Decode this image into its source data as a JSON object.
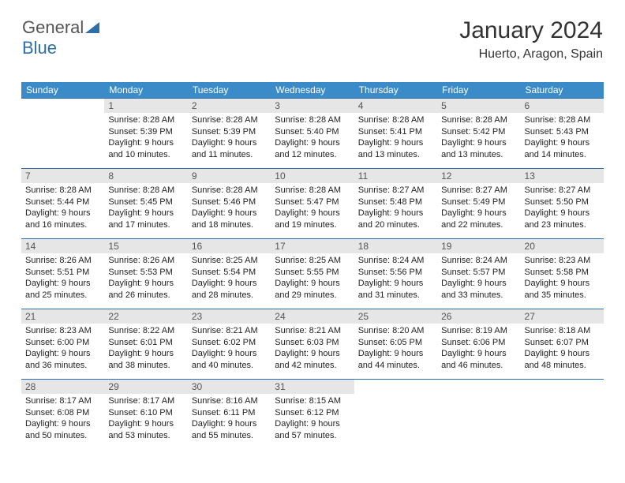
{
  "logo": {
    "part1": "General",
    "part2": "Blue"
  },
  "title": "January 2024",
  "location": "Huerto, Aragon, Spain",
  "colors": {
    "header_bg": "#3b8bc9",
    "daynum_bg": "#e6e6e6",
    "rule": "#2f6fa8",
    "logo_blue": "#2f6fa8"
  },
  "weekdays": [
    "Sunday",
    "Monday",
    "Tuesday",
    "Wednesday",
    "Thursday",
    "Friday",
    "Saturday"
  ],
  "weeks": [
    [
      {
        "day": "",
        "sunrise": "",
        "sunset": "",
        "daylight": ""
      },
      {
        "day": "1",
        "sunrise": "Sunrise: 8:28 AM",
        "sunset": "Sunset: 5:39 PM",
        "daylight": "Daylight: 9 hours and 10 minutes."
      },
      {
        "day": "2",
        "sunrise": "Sunrise: 8:28 AM",
        "sunset": "Sunset: 5:39 PM",
        "daylight": "Daylight: 9 hours and 11 minutes."
      },
      {
        "day": "3",
        "sunrise": "Sunrise: 8:28 AM",
        "sunset": "Sunset: 5:40 PM",
        "daylight": "Daylight: 9 hours and 12 minutes."
      },
      {
        "day": "4",
        "sunrise": "Sunrise: 8:28 AM",
        "sunset": "Sunset: 5:41 PM",
        "daylight": "Daylight: 9 hours and 13 minutes."
      },
      {
        "day": "5",
        "sunrise": "Sunrise: 8:28 AM",
        "sunset": "Sunset: 5:42 PM",
        "daylight": "Daylight: 9 hours and 13 minutes."
      },
      {
        "day": "6",
        "sunrise": "Sunrise: 8:28 AM",
        "sunset": "Sunset: 5:43 PM",
        "daylight": "Daylight: 9 hours and 14 minutes."
      }
    ],
    [
      {
        "day": "7",
        "sunrise": "Sunrise: 8:28 AM",
        "sunset": "Sunset: 5:44 PM",
        "daylight": "Daylight: 9 hours and 16 minutes."
      },
      {
        "day": "8",
        "sunrise": "Sunrise: 8:28 AM",
        "sunset": "Sunset: 5:45 PM",
        "daylight": "Daylight: 9 hours and 17 minutes."
      },
      {
        "day": "9",
        "sunrise": "Sunrise: 8:28 AM",
        "sunset": "Sunset: 5:46 PM",
        "daylight": "Daylight: 9 hours and 18 minutes."
      },
      {
        "day": "10",
        "sunrise": "Sunrise: 8:28 AM",
        "sunset": "Sunset: 5:47 PM",
        "daylight": "Daylight: 9 hours and 19 minutes."
      },
      {
        "day": "11",
        "sunrise": "Sunrise: 8:27 AM",
        "sunset": "Sunset: 5:48 PM",
        "daylight": "Daylight: 9 hours and 20 minutes."
      },
      {
        "day": "12",
        "sunrise": "Sunrise: 8:27 AM",
        "sunset": "Sunset: 5:49 PM",
        "daylight": "Daylight: 9 hours and 22 minutes."
      },
      {
        "day": "13",
        "sunrise": "Sunrise: 8:27 AM",
        "sunset": "Sunset: 5:50 PM",
        "daylight": "Daylight: 9 hours and 23 minutes."
      }
    ],
    [
      {
        "day": "14",
        "sunrise": "Sunrise: 8:26 AM",
        "sunset": "Sunset: 5:51 PM",
        "daylight": "Daylight: 9 hours and 25 minutes."
      },
      {
        "day": "15",
        "sunrise": "Sunrise: 8:26 AM",
        "sunset": "Sunset: 5:53 PM",
        "daylight": "Daylight: 9 hours and 26 minutes."
      },
      {
        "day": "16",
        "sunrise": "Sunrise: 8:25 AM",
        "sunset": "Sunset: 5:54 PM",
        "daylight": "Daylight: 9 hours and 28 minutes."
      },
      {
        "day": "17",
        "sunrise": "Sunrise: 8:25 AM",
        "sunset": "Sunset: 5:55 PM",
        "daylight": "Daylight: 9 hours and 29 minutes."
      },
      {
        "day": "18",
        "sunrise": "Sunrise: 8:24 AM",
        "sunset": "Sunset: 5:56 PM",
        "daylight": "Daylight: 9 hours and 31 minutes."
      },
      {
        "day": "19",
        "sunrise": "Sunrise: 8:24 AM",
        "sunset": "Sunset: 5:57 PM",
        "daylight": "Daylight: 9 hours and 33 minutes."
      },
      {
        "day": "20",
        "sunrise": "Sunrise: 8:23 AM",
        "sunset": "Sunset: 5:58 PM",
        "daylight": "Daylight: 9 hours and 35 minutes."
      }
    ],
    [
      {
        "day": "21",
        "sunrise": "Sunrise: 8:23 AM",
        "sunset": "Sunset: 6:00 PM",
        "daylight": "Daylight: 9 hours and 36 minutes."
      },
      {
        "day": "22",
        "sunrise": "Sunrise: 8:22 AM",
        "sunset": "Sunset: 6:01 PM",
        "daylight": "Daylight: 9 hours and 38 minutes."
      },
      {
        "day": "23",
        "sunrise": "Sunrise: 8:21 AM",
        "sunset": "Sunset: 6:02 PM",
        "daylight": "Daylight: 9 hours and 40 minutes."
      },
      {
        "day": "24",
        "sunrise": "Sunrise: 8:21 AM",
        "sunset": "Sunset: 6:03 PM",
        "daylight": "Daylight: 9 hours and 42 minutes."
      },
      {
        "day": "25",
        "sunrise": "Sunrise: 8:20 AM",
        "sunset": "Sunset: 6:05 PM",
        "daylight": "Daylight: 9 hours and 44 minutes."
      },
      {
        "day": "26",
        "sunrise": "Sunrise: 8:19 AM",
        "sunset": "Sunset: 6:06 PM",
        "daylight": "Daylight: 9 hours and 46 minutes."
      },
      {
        "day": "27",
        "sunrise": "Sunrise: 8:18 AM",
        "sunset": "Sunset: 6:07 PM",
        "daylight": "Daylight: 9 hours and 48 minutes."
      }
    ],
    [
      {
        "day": "28",
        "sunrise": "Sunrise: 8:17 AM",
        "sunset": "Sunset: 6:08 PM",
        "daylight": "Daylight: 9 hours and 50 minutes."
      },
      {
        "day": "29",
        "sunrise": "Sunrise: 8:17 AM",
        "sunset": "Sunset: 6:10 PM",
        "daylight": "Daylight: 9 hours and 53 minutes."
      },
      {
        "day": "30",
        "sunrise": "Sunrise: 8:16 AM",
        "sunset": "Sunset: 6:11 PM",
        "daylight": "Daylight: 9 hours and 55 minutes."
      },
      {
        "day": "31",
        "sunrise": "Sunrise: 8:15 AM",
        "sunset": "Sunset: 6:12 PM",
        "daylight": "Daylight: 9 hours and 57 minutes."
      },
      {
        "day": "",
        "sunrise": "",
        "sunset": "",
        "daylight": ""
      },
      {
        "day": "",
        "sunrise": "",
        "sunset": "",
        "daylight": ""
      },
      {
        "day": "",
        "sunrise": "",
        "sunset": "",
        "daylight": ""
      }
    ]
  ]
}
